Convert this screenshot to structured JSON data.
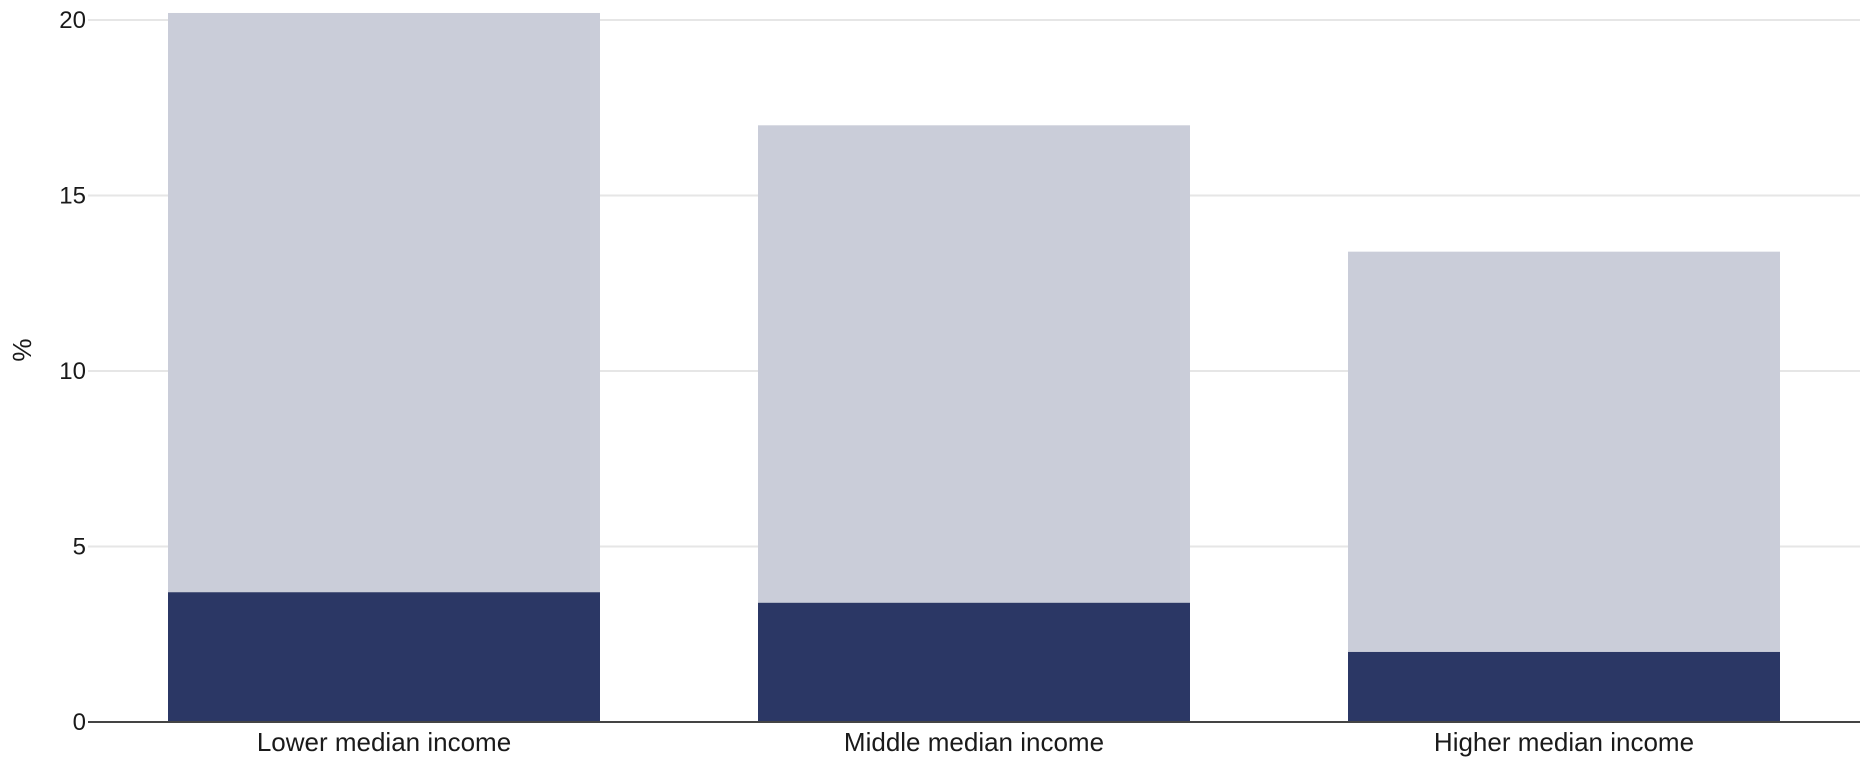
{
  "chart_data": {
    "type": "bar",
    "stacked": true,
    "categories": [
      "Lower median income",
      "Middle median income",
      "Higher median income"
    ],
    "series": [
      {
        "values": [
          3.7,
          3.4,
          2.0
        ],
        "color": "#2b3765"
      },
      {
        "values": [
          16.5,
          13.6,
          11.4
        ],
        "color": "#cacdd9"
      }
    ],
    "ylabel": "%",
    "xlabel": "",
    "ylim": [
      0,
      20
    ],
    "yticks": [
      0,
      5,
      10,
      15,
      20
    ],
    "grid": true,
    "legend": "none"
  }
}
